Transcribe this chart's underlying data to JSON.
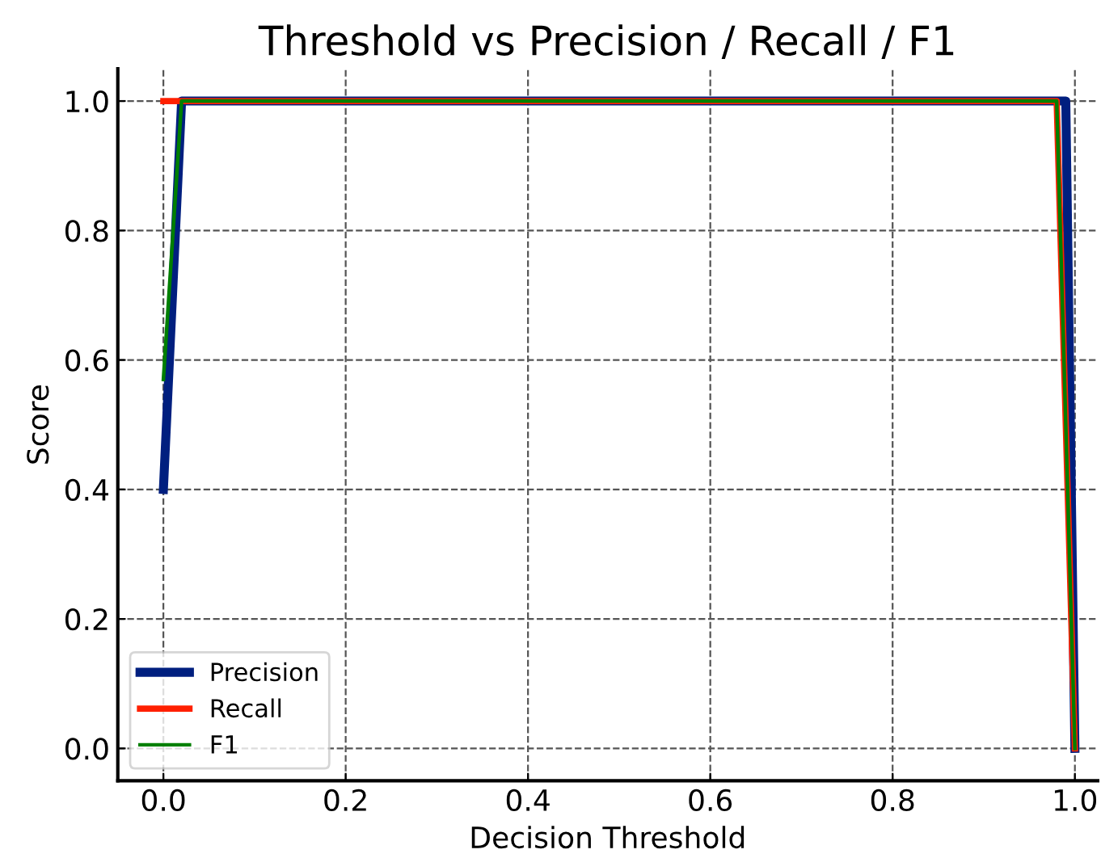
{
  "chart_data": {
    "type": "line",
    "title": "Threshold vs Precision / Recall / F1",
    "xlabel": "Decision Threshold",
    "ylabel": "Score",
    "xlim": [
      -0.05,
      1.025
    ],
    "ylim": [
      -0.05,
      1.05
    ],
    "xticks": [
      {
        "value": 0,
        "label": "0.0"
      },
      0.2,
      0.4,
      0.6,
      0.8,
      {
        "value": 1,
        "label": "1.0"
      }
    ],
    "yticks": [
      {
        "value": 0,
        "label": "0.0"
      },
      0.2,
      0.4,
      0.6,
      0.8,
      {
        "value": 1,
        "label": "1.0"
      }
    ],
    "grid": true,
    "legend": "bottom left",
    "line_style": "solid",
    "series": [
      {
        "name": "Precision",
        "color": "#001f7f",
        "x": [
          0,
          0.02,
          0.99,
          1.0
        ],
        "values": [
          0.4,
          1.0,
          1.0,
          0.0
        ]
      },
      {
        "name": "Recall",
        "color": "#ff2000",
        "x": [
          0,
          0.02,
          0.98,
          1.0
        ],
        "values": [
          1.0,
          1.0,
          1.0,
          0.0
        ]
      },
      {
        "name": "F1",
        "color": "#007f00",
        "x": [
          0,
          0.02,
          0.98,
          1.0
        ],
        "values": [
          0.57,
          1.0,
          1.0,
          0.0
        ]
      }
    ]
  }
}
